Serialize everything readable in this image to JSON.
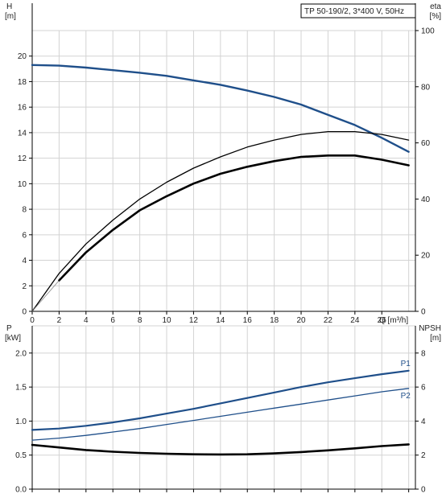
{
  "title": "TP 50-190/2, 3*400 V, 50Hz",
  "colors": {
    "head": "#1f4f8a",
    "power": "#1f4f8a",
    "efficiency": "#000000",
    "npsh": "#000000",
    "grid": "#d3d3d3"
  },
  "chart_data": [
    {
      "type": "line",
      "panel": "top",
      "title": "TP 50-190/2, 3*400 V, 50Hz",
      "xlabel": "Q [m³/h]",
      "x_ticks": [
        "0",
        "2",
        "4",
        "6",
        "8",
        "10",
        "12",
        "14",
        "16",
        "18",
        "20",
        "22",
        "24",
        "26"
      ],
      "xlim": [
        0,
        28.5
      ],
      "ylabel_left": [
        "H",
        "[m]"
      ],
      "ylim_left": [
        0,
        22
      ],
      "y_ticks_left": [
        "0",
        "2",
        "4",
        "6",
        "8",
        "10",
        "12",
        "14",
        "16",
        "18",
        "20"
      ],
      "ylabel_right": [
        "eta",
        "[%]"
      ],
      "ylim_right": [
        0,
        100
      ],
      "y_ticks_right": [
        "0",
        "20",
        "40",
        "60",
        "80",
        "100"
      ],
      "grid": true,
      "series": [
        {
          "key": "H",
          "axis": "left",
          "x": [
            0,
            2,
            4,
            6,
            8,
            10,
            12,
            14,
            16,
            18,
            20,
            22,
            24,
            26,
            28
          ],
          "y": [
            19.3,
            19.25,
            19.1,
            18.9,
            18.7,
            18.45,
            18.1,
            17.75,
            17.3,
            16.8,
            16.2,
            15.4,
            14.6,
            13.6,
            12.5
          ]
        },
        {
          "key": "eta_upper",
          "axis": "right",
          "x": [
            0,
            2,
            4,
            6,
            8,
            10,
            12,
            14,
            16,
            18,
            20,
            22,
            24,
            26,
            28
          ],
          "y": [
            0,
            13.5,
            24,
            32.5,
            40,
            46,
            51,
            55,
            58.5,
            61,
            63,
            64,
            64,
            63,
            61
          ]
        },
        {
          "key": "eta_lower",
          "axis": "right",
          "x": [
            2,
            4,
            6,
            8,
            10,
            12,
            14,
            16,
            18,
            20,
            22,
            24,
            26,
            28
          ],
          "y": [
            11,
            21,
            29,
            36,
            41,
            45.5,
            49,
            51.5,
            53.5,
            55,
            55.5,
            55.5,
            54,
            52
          ]
        }
      ]
    },
    {
      "type": "line",
      "panel": "bottom",
      "xlim": [
        0,
        28.5
      ],
      "ylabel_left": [
        "P",
        "[kW]"
      ],
      "ylim_left": [
        0,
        2.4
      ],
      "y_ticks_left": [
        "0.0",
        "0.5",
        "1.0",
        "1.5",
        "2.0"
      ],
      "ylabel_right": [
        "NPSH",
        "[m]"
      ],
      "ylim_right": [
        0,
        9.6
      ],
      "y_ticks_right": [
        "0",
        "2",
        "4",
        "6",
        "8"
      ],
      "grid": true,
      "series": [
        {
          "name": "P1",
          "axis": "left",
          "x": [
            0,
            2,
            4,
            6,
            8,
            10,
            12,
            14,
            16,
            18,
            20,
            22,
            24,
            26,
            28
          ],
          "y": [
            0.87,
            0.89,
            0.93,
            0.98,
            1.04,
            1.11,
            1.18,
            1.26,
            1.34,
            1.42,
            1.5,
            1.57,
            1.63,
            1.69,
            1.74
          ]
        },
        {
          "name": "P2",
          "axis": "left",
          "x": [
            0,
            2,
            4,
            6,
            8,
            10,
            12,
            14,
            16,
            18,
            20,
            22,
            24,
            26,
            28
          ],
          "y": [
            0.72,
            0.75,
            0.79,
            0.84,
            0.89,
            0.95,
            1.01,
            1.07,
            1.13,
            1.19,
            1.25,
            1.31,
            1.37,
            1.43,
            1.48
          ]
        },
        {
          "key": "NPSH",
          "axis": "right",
          "x": [
            0,
            2,
            4,
            6,
            8,
            10,
            12,
            14,
            16,
            18,
            20,
            22,
            24,
            26,
            28
          ],
          "y": [
            2.6,
            2.45,
            2.3,
            2.2,
            2.13,
            2.08,
            2.05,
            2.04,
            2.05,
            2.1,
            2.18,
            2.28,
            2.4,
            2.53,
            2.63
          ]
        }
      ]
    }
  ]
}
